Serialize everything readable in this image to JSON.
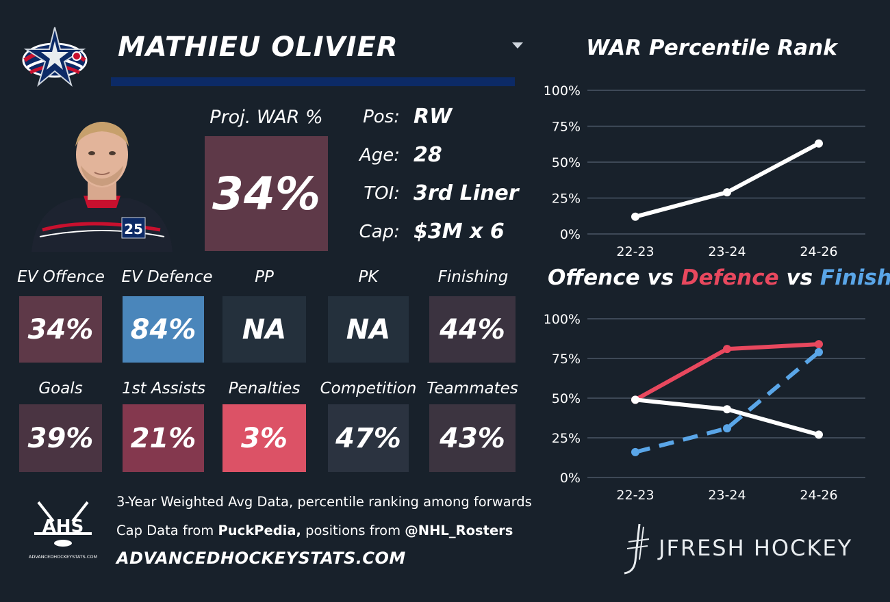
{
  "player": {
    "name": "MATHIEU OLIVIER",
    "team_logo_icon": "blue-jackets-logo",
    "photo_icon": "player-headshot",
    "jersey_number": "25"
  },
  "projection": {
    "label": "Proj. WAR %",
    "value": "34%"
  },
  "info": [
    {
      "label": "Pos:",
      "value": "RW"
    },
    {
      "label": "Age:",
      "value": "28"
    },
    {
      "label": "TOI:",
      "value": "3rd Liner"
    },
    {
      "label": "Cap:",
      "value": "$3M x 6"
    }
  ],
  "stats_row1": [
    {
      "label": "EV Offence",
      "value": "34%",
      "color": "#5e3948"
    },
    {
      "label": "EV Defence",
      "value": "84%",
      "color": "#4a86bb"
    },
    {
      "label": "PP",
      "value": "NA",
      "color": "#24303c"
    },
    {
      "label": "PK",
      "value": "NA",
      "color": "#24303c"
    },
    {
      "label": "Finishing",
      "value": "44%",
      "color": "#3b3340"
    }
  ],
  "stats_row2": [
    {
      "label": "Goals",
      "value": "39%",
      "color": "#4a3442"
    },
    {
      "label": "1st Assists",
      "value": "21%",
      "color": "#84384e"
    },
    {
      "label": "Penalties",
      "value": "3%",
      "color": "#dc5266"
    },
    {
      "label": "Competition",
      "value": "47%",
      "color": "#2b3340"
    },
    {
      "label": "Teammates",
      "value": "43%",
      "color": "#3c3440"
    }
  ],
  "footer": {
    "line1": "3-Year Weighted Avg Data, percentile ranking among forwards",
    "line2_prefix": "Cap Data from ",
    "line2_source1": "PuckPedia,",
    "line2_mid": " positions from ",
    "line2_source2": "@NHL_Rosters",
    "site": "ADVANCEDHOCKEYSTATS.COM",
    "ahs_logo_text": "AHS",
    "ahs_logo_subtext": "ADVANCEDHOCKEYSTATS.COM",
    "brand": "JFRESH HOCKEY"
  },
  "colors": {
    "offence": "#e8485e",
    "finishing": "#5aa6e8",
    "war": "#ffffff",
    "gridline": "#4a5766"
  },
  "chart_data": [
    {
      "type": "line",
      "title": "WAR Percentile Rank",
      "categories": [
        "22-23",
        "23-24",
        "24-26"
      ],
      "series": [
        {
          "values": [
            12,
            29,
            63
          ],
          "color": "#ffffff"
        }
      ],
      "yticks": [
        "0%",
        "25%",
        "50%",
        "75%",
        "100%"
      ],
      "ylim": [
        0,
        100
      ],
      "grid": true
    },
    {
      "type": "line",
      "title_parts": [
        "Offence",
        " vs ",
        "Defence",
        " vs ",
        "Finishing"
      ],
      "categories": [
        "22-23",
        "23-24",
        "24-26"
      ],
      "series": [
        {
          "values": [
            49,
            81,
            84
          ],
          "color": "#e8485e",
          "style": "solid"
        },
        {
          "values": [
            49,
            43,
            27
          ],
          "color": "#ffffff",
          "style": "solid"
        },
        {
          "values": [
            16,
            31,
            79
          ],
          "color": "#5aa6e8",
          "style": "dashed"
        }
      ],
      "yticks": [
        "0%",
        "25%",
        "50%",
        "75%",
        "100%"
      ],
      "ylim": [
        0,
        100
      ],
      "grid": true
    }
  ]
}
